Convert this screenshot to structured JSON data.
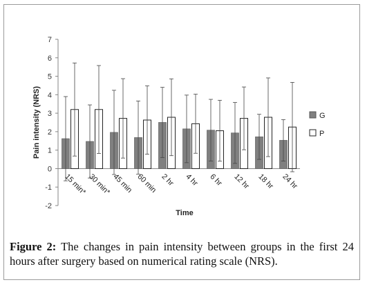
{
  "chart_data": {
    "type": "bar",
    "ylabel": "Pain intensity (NRS)",
    "xlabel": "Time",
    "ylim": [
      -2,
      7
    ],
    "yticks": [
      -2,
      -1,
      0,
      1,
      2,
      3,
      4,
      5,
      6,
      7
    ],
    "grid": false,
    "legend_position": "right",
    "categories": [
      "15 min*",
      "30 min*",
      "45 min",
      "60 min",
      "2 hr",
      "4 hr",
      "6 hr",
      "12 hr",
      "18 hr",
      "24 hr"
    ],
    "series": [
      {
        "name": "G",
        "color": "#808080",
        "values": [
          1.62,
          1.47,
          1.96,
          1.68,
          2.5,
          2.15,
          2.08,
          1.93,
          1.72,
          1.53
        ],
        "error": [
          2.28,
          1.98,
          2.28,
          1.98,
          1.9,
          1.83,
          1.67,
          1.65,
          1.22,
          1.12
        ]
      },
      {
        "name": "P",
        "color": "#ffffff",
        "values": [
          3.2,
          3.2,
          2.72,
          2.63,
          2.78,
          2.43,
          2.05,
          2.72,
          2.78,
          2.25
        ],
        "error": [
          2.52,
          2.38,
          2.15,
          1.85,
          2.08,
          1.6,
          1.65,
          1.7,
          2.13,
          2.42
        ]
      }
    ]
  },
  "caption": {
    "label": "Figure 2:",
    "text": " The changes in pain intensity between groups in the first 24 hours after surgery based on numerical rating scale (NRS)."
  }
}
